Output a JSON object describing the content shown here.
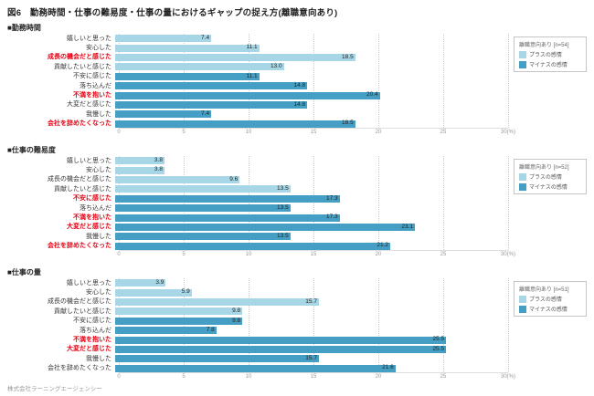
{
  "page": {
    "title": "図6　勤務時間・仕事の難易度・仕事の量におけるギャップの捉え方(離職意向あり)",
    "footer": "株式会社ラーニングエージェンシー"
  },
  "colors": {
    "positive": "#a7d7e6",
    "negative": "#459fc4",
    "red_label": "#e60012",
    "label": "#333333",
    "grid": "#cccccc"
  },
  "legend": {
    "positive_label": "プラスの感情",
    "negative_label": "マイナスの感情"
  },
  "axis": {
    "max": 30,
    "ticks": [
      "0",
      "5",
      "10",
      "15",
      "20",
      "25",
      "30(%)"
    ]
  },
  "chart_data": [
    {
      "type": "bar",
      "orientation": "horizontal",
      "title": "■勤務時間",
      "legend_title": "離職意向あり [n=54]",
      "xlim": [
        0,
        30
      ],
      "grid": true,
      "legend_position": "right",
      "rows": [
        {
          "label": "嬉しいと思った",
          "value": 7.4,
          "sentiment": "positive",
          "red": false
        },
        {
          "label": "安心した",
          "value": 11.1,
          "sentiment": "positive",
          "red": false
        },
        {
          "label": "成長の機会だと感じた",
          "value": 18.5,
          "sentiment": "positive",
          "red": true
        },
        {
          "label": "貢献したいと感じた",
          "value": 13.0,
          "sentiment": "positive",
          "red": false
        },
        {
          "label": "不安に感じた",
          "value": 11.1,
          "sentiment": "negative",
          "red": false
        },
        {
          "label": "落ち込んだ",
          "value": 14.8,
          "sentiment": "negative",
          "red": false
        },
        {
          "label": "不満を抱いた",
          "value": 20.4,
          "sentiment": "negative",
          "red": true
        },
        {
          "label": "大変だと感じた",
          "value": 14.8,
          "sentiment": "negative",
          "red": false
        },
        {
          "label": "我慢した",
          "value": 7.4,
          "sentiment": "negative",
          "red": false
        },
        {
          "label": "会社を辞めたくなった",
          "value": 18.5,
          "sentiment": "negative",
          "red": true
        }
      ]
    },
    {
      "type": "bar",
      "orientation": "horizontal",
      "title": "■仕事の難易度",
      "legend_title": "離職意向あり [n=52]",
      "xlim": [
        0,
        30
      ],
      "grid": true,
      "legend_position": "right",
      "rows": [
        {
          "label": "嬉しいと思った",
          "value": 3.8,
          "sentiment": "positive",
          "red": false
        },
        {
          "label": "安心した",
          "value": 3.8,
          "sentiment": "positive",
          "red": false
        },
        {
          "label": "成長の機会だと感じた",
          "value": 9.6,
          "sentiment": "positive",
          "red": false
        },
        {
          "label": "貢献したいと感じた",
          "value": 13.5,
          "sentiment": "positive",
          "red": false
        },
        {
          "label": "不安に感じた",
          "value": 17.3,
          "sentiment": "negative",
          "red": true
        },
        {
          "label": "落ち込んだ",
          "value": 13.5,
          "sentiment": "negative",
          "red": false
        },
        {
          "label": "不満を抱いた",
          "value": 17.3,
          "sentiment": "negative",
          "red": true
        },
        {
          "label": "大変だと感じた",
          "value": 23.1,
          "sentiment": "negative",
          "red": true
        },
        {
          "label": "我慢した",
          "value": 13.5,
          "sentiment": "negative",
          "red": false
        },
        {
          "label": "会社を辞めたくなった",
          "value": 21.2,
          "sentiment": "negative",
          "red": true
        }
      ]
    },
    {
      "type": "bar",
      "orientation": "horizontal",
      "title": "■仕事の量",
      "legend_title": "離職意向あり [n=51]",
      "xlim": [
        0,
        30
      ],
      "grid": true,
      "legend_position": "right",
      "rows": [
        {
          "label": "嬉しいと思った",
          "value": 3.9,
          "sentiment": "positive",
          "red": false
        },
        {
          "label": "安心した",
          "value": 5.9,
          "sentiment": "positive",
          "red": false
        },
        {
          "label": "成長の機会だと感じた",
          "value": 15.7,
          "sentiment": "positive",
          "red": false
        },
        {
          "label": "貢献したいと感じた",
          "value": 9.8,
          "sentiment": "positive",
          "red": false
        },
        {
          "label": "不安に感じた",
          "value": 9.8,
          "sentiment": "negative",
          "red": false
        },
        {
          "label": "落ち込んだ",
          "value": 7.8,
          "sentiment": "negative",
          "red": false
        },
        {
          "label": "不満を抱いた",
          "value": 25.5,
          "sentiment": "negative",
          "red": true
        },
        {
          "label": "大変だと感じた",
          "value": 25.5,
          "sentiment": "negative",
          "red": true
        },
        {
          "label": "我慢した",
          "value": 15.7,
          "sentiment": "negative",
          "red": false
        },
        {
          "label": "会社を辞めたくなった",
          "value": 21.6,
          "sentiment": "negative",
          "red": false
        }
      ]
    }
  ]
}
